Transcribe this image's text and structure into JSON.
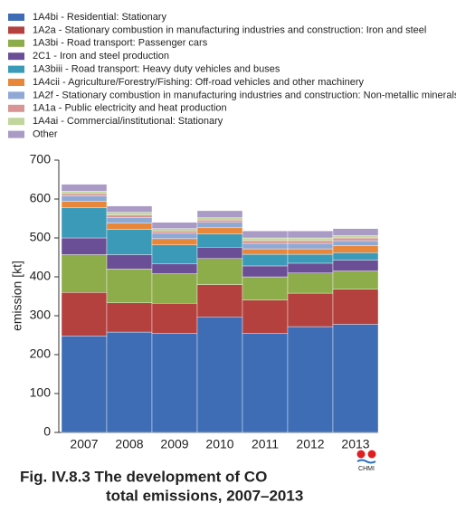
{
  "chart_data": {
    "type": "stacked_bar",
    "title": [
      "Fig. IV.8.3  The development of CO",
      "total emissions, 2007–2013"
    ],
    "y_label": "emission [kt]",
    "logo_text": "CHMI",
    "categories": [
      "2007",
      "2008",
      "2009",
      "2010",
      "2011",
      "2012",
      "2013"
    ],
    "ylim": [
      0,
      700
    ],
    "yticks": [
      0,
      100,
      200,
      300,
      400,
      500,
      600,
      700
    ],
    "grid": false,
    "series": [
      {
        "name": "1A4bi - Residential: Stationary",
        "color": "#3e6db5",
        "values": [
          248,
          258,
          255,
          297,
          255,
          272,
          278
        ]
      },
      {
        "name": "1A2a - Stationary combustion in manufacturing industries and construction: Iron and steel",
        "color": "#b5413e",
        "values": [
          112,
          75,
          77,
          83,
          85,
          86,
          90
        ]
      },
      {
        "name": "1A3bi - Road transport: Passenger cars",
        "color": "#8dac4a",
        "values": [
          97,
          87,
          76,
          67,
          60,
          52,
          47
        ]
      },
      {
        "name": "2C1 - Iron and steel production",
        "color": "#6b4f96",
        "values": [
          43,
          37,
          25,
          29,
          28,
          25,
          28
        ]
      },
      {
        "name": "1A3biii - Road transport: Heavy duty vehicles and buses",
        "color": "#3b9ab7",
        "values": [
          78,
          65,
          49,
          34,
          30,
          23,
          19
        ]
      },
      {
        "name": "1A4cii - Agriculture/Forestry/Fishing: Off-road vehicles and other machinery",
        "color": "#e8873a",
        "values": [
          16,
          16,
          16,
          16,
          14,
          14,
          18
        ]
      },
      {
        "name": "1A2f - Stationary combustion in manufacturing industries and construction: Non-metallic minerals",
        "color": "#8fa9d5",
        "values": [
          14,
          14,
          14,
          14,
          14,
          14,
          13
        ]
      },
      {
        "name": "1A1a - Public electricity and heat production",
        "color": "#d99593",
        "values": [
          6,
          7,
          6,
          6,
          7,
          7,
          7
        ]
      },
      {
        "name": "1A4ai - Commercial/institutional: Stationary",
        "color": "#c1d69c",
        "values": [
          6,
          7,
          6,
          6,
          7,
          7,
          6
        ]
      },
      {
        "name": "Other",
        "color": "#a99bc6",
        "values": [
          18,
          16,
          16,
          18,
          18,
          18,
          18
        ]
      }
    ]
  }
}
